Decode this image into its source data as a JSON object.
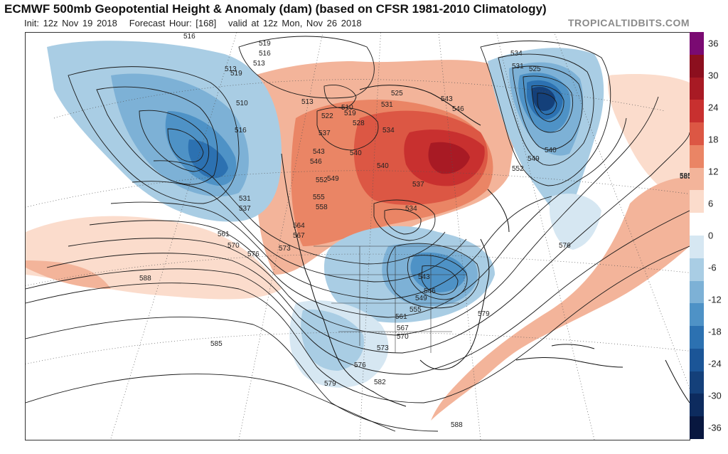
{
  "header": {
    "title": "ECMWF 500mb Geopotential Height & Anomaly (dam) (based on CFSR 1981-2010 Climatology)",
    "init": "Init: 12z Nov 19 2018",
    "forecast_hour": "Forecast Hour: [168]",
    "valid": "valid at 12z Mon, Nov 26 2018",
    "brand": "TROPICALTIDBITS.COM"
  },
  "legend": {
    "labels": [
      "36",
      "30",
      "24",
      "18",
      "12",
      "6",
      "0",
      "-6",
      "-12",
      "-18",
      "-24",
      "-30",
      "-36"
    ],
    "colors": [
      "#7a0a72",
      "#8c0f1e",
      "#a81a24",
      "#c8302f",
      "#dc5744",
      "#ea8565",
      "#f3b49a",
      "#fbdccc",
      "#ffffff",
      "#d6e7f2",
      "#a9cde4",
      "#7db1d6",
      "#4e92c6",
      "#2c71b1",
      "#1b5597",
      "#14407a",
      "#0d2b5e",
      "#08173f"
    ]
  },
  "contours": {
    "labels": [
      "516",
      "519",
      "516",
      "513",
      "510",
      "513",
      "522",
      "519",
      "528",
      "525",
      "531",
      "534",
      "537",
      "543",
      "546",
      "540",
      "540",
      "543",
      "546",
      "549",
      "552",
      "555",
      "558",
      "564",
      "567",
      "561",
      "570",
      "576",
      "573",
      "537",
      "534",
      "543",
      "546",
      "549",
      "555",
      "561",
      "567",
      "570",
      "573",
      "576",
      "579",
      "582",
      "579",
      "585",
      "588",
      "588",
      "585",
      "534",
      "531",
      "525",
      "540",
      "549",
      "552",
      "585",
      "576",
      "510",
      "519",
      "516",
      "531",
      "537",
      "513"
    ]
  }
}
